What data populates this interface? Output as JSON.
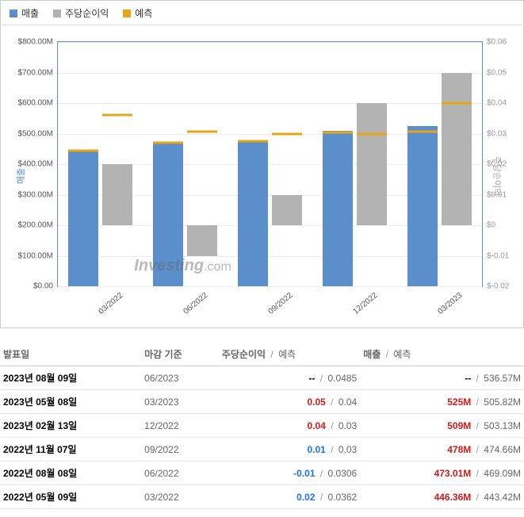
{
  "legend": {
    "items": [
      {
        "label": "매출",
        "color": "#5b8fcc"
      },
      {
        "label": "주당순이익",
        "color": "#b3b3b3"
      },
      {
        "label": "예측",
        "color": "#e6a417"
      }
    ]
  },
  "chart": {
    "type": "bar",
    "background_color": "#ffffff",
    "grid_color": "#eeeeee",
    "border_color": "#5b8fcc",
    "bar_width_pct": 7,
    "watermark": "Investing.com",
    "ylabel_left": "매출",
    "ylabel_right": "주당순이익",
    "left_axis": {
      "min": 0,
      "max": 800,
      "ticks": [
        {
          "v": 0,
          "label": "$0.00"
        },
        {
          "v": 100,
          "label": "$100.00M"
        },
        {
          "v": 200,
          "label": "$200.00M"
        },
        {
          "v": 300,
          "label": "$300.00M"
        },
        {
          "v": 400,
          "label": "$400.00M"
        },
        {
          "v": 500,
          "label": "$500.00M"
        },
        {
          "v": 600,
          "label": "$600.00M"
        },
        {
          "v": 700,
          "label": "$700.00M"
        },
        {
          "v": 800,
          "label": "$800.00M"
        }
      ]
    },
    "right_axis": {
      "min": -0.02,
      "max": 0.06,
      "ticks": [
        {
          "v": -0.02,
          "label": "$-0.02"
        },
        {
          "v": -0.01,
          "label": "$-0.01"
        },
        {
          "v": 0.0,
          "label": "$0"
        },
        {
          "v": 0.01,
          "label": "$0.01"
        },
        {
          "v": 0.02,
          "label": "$0.02"
        },
        {
          "v": 0.03,
          "label": "$0.03"
        },
        {
          "v": 0.04,
          "label": "$0.04"
        },
        {
          "v": 0.05,
          "label": "$0.05"
        },
        {
          "v": 0.06,
          "label": "$0.06"
        }
      ]
    },
    "categories": [
      "03/2022",
      "06/2022",
      "09/2022",
      "12/2022",
      "03/2023"
    ],
    "series": {
      "revenue": {
        "color": "#5b8fcc",
        "values": [
          446,
          473,
          478,
          509,
          525
        ],
        "forecast": [
          443,
          469,
          475,
          503,
          506
        ],
        "forecast_color": "#e6a417"
      },
      "eps": {
        "color": "#b3b3b3",
        "values": [
          0.02,
          -0.01,
          0.01,
          0.04,
          0.05
        ],
        "base": 0.0,
        "forecast": [
          0.0362,
          0.0306,
          0.03,
          0.03,
          0.04
        ],
        "forecast_color": "#e6a417"
      }
    }
  },
  "table": {
    "headers": {
      "date": "발표일",
      "period": "마감 기준",
      "eps": "주당순이익",
      "forecast": "예측",
      "rev": "매출",
      "forecast2": "예측",
      "slash": "/"
    },
    "rows": [
      {
        "date": "2023년 08월 09일",
        "period": "06/2023",
        "eps": "--",
        "eps_cls": "",
        "eps_fc": "0.0485",
        "rev": "--",
        "rev_cls": "",
        "rev_fc": "536.57M"
      },
      {
        "date": "2023년 05월 08일",
        "period": "03/2023",
        "eps": "0.05",
        "eps_cls": "red",
        "eps_fc": "0.04",
        "rev": "525M",
        "rev_cls": "red",
        "rev_fc": "505.82M"
      },
      {
        "date": "2023년 02월 13일",
        "period": "12/2022",
        "eps": "0.04",
        "eps_cls": "red",
        "eps_fc": "0.03",
        "rev": "509M",
        "rev_cls": "red",
        "rev_fc": "503.13M"
      },
      {
        "date": "2022년 11월 07일",
        "period": "09/2022",
        "eps": "0.01",
        "eps_cls": "pos",
        "eps_fc": "0.03",
        "rev": "478M",
        "rev_cls": "red",
        "rev_fc": "474.66M"
      },
      {
        "date": "2022년 08월 08일",
        "period": "06/2022",
        "eps": "-0.01",
        "eps_cls": "neg-blue",
        "eps_fc": "0.0306",
        "rev": "473.01M",
        "rev_cls": "red",
        "rev_fc": "469.09M"
      },
      {
        "date": "2022년 05월 09일",
        "period": "03/2022",
        "eps": "0.02",
        "eps_cls": "pos",
        "eps_fc": "0.0362",
        "rev": "446.36M",
        "rev_cls": "red",
        "rev_fc": "443.42M"
      }
    ]
  }
}
